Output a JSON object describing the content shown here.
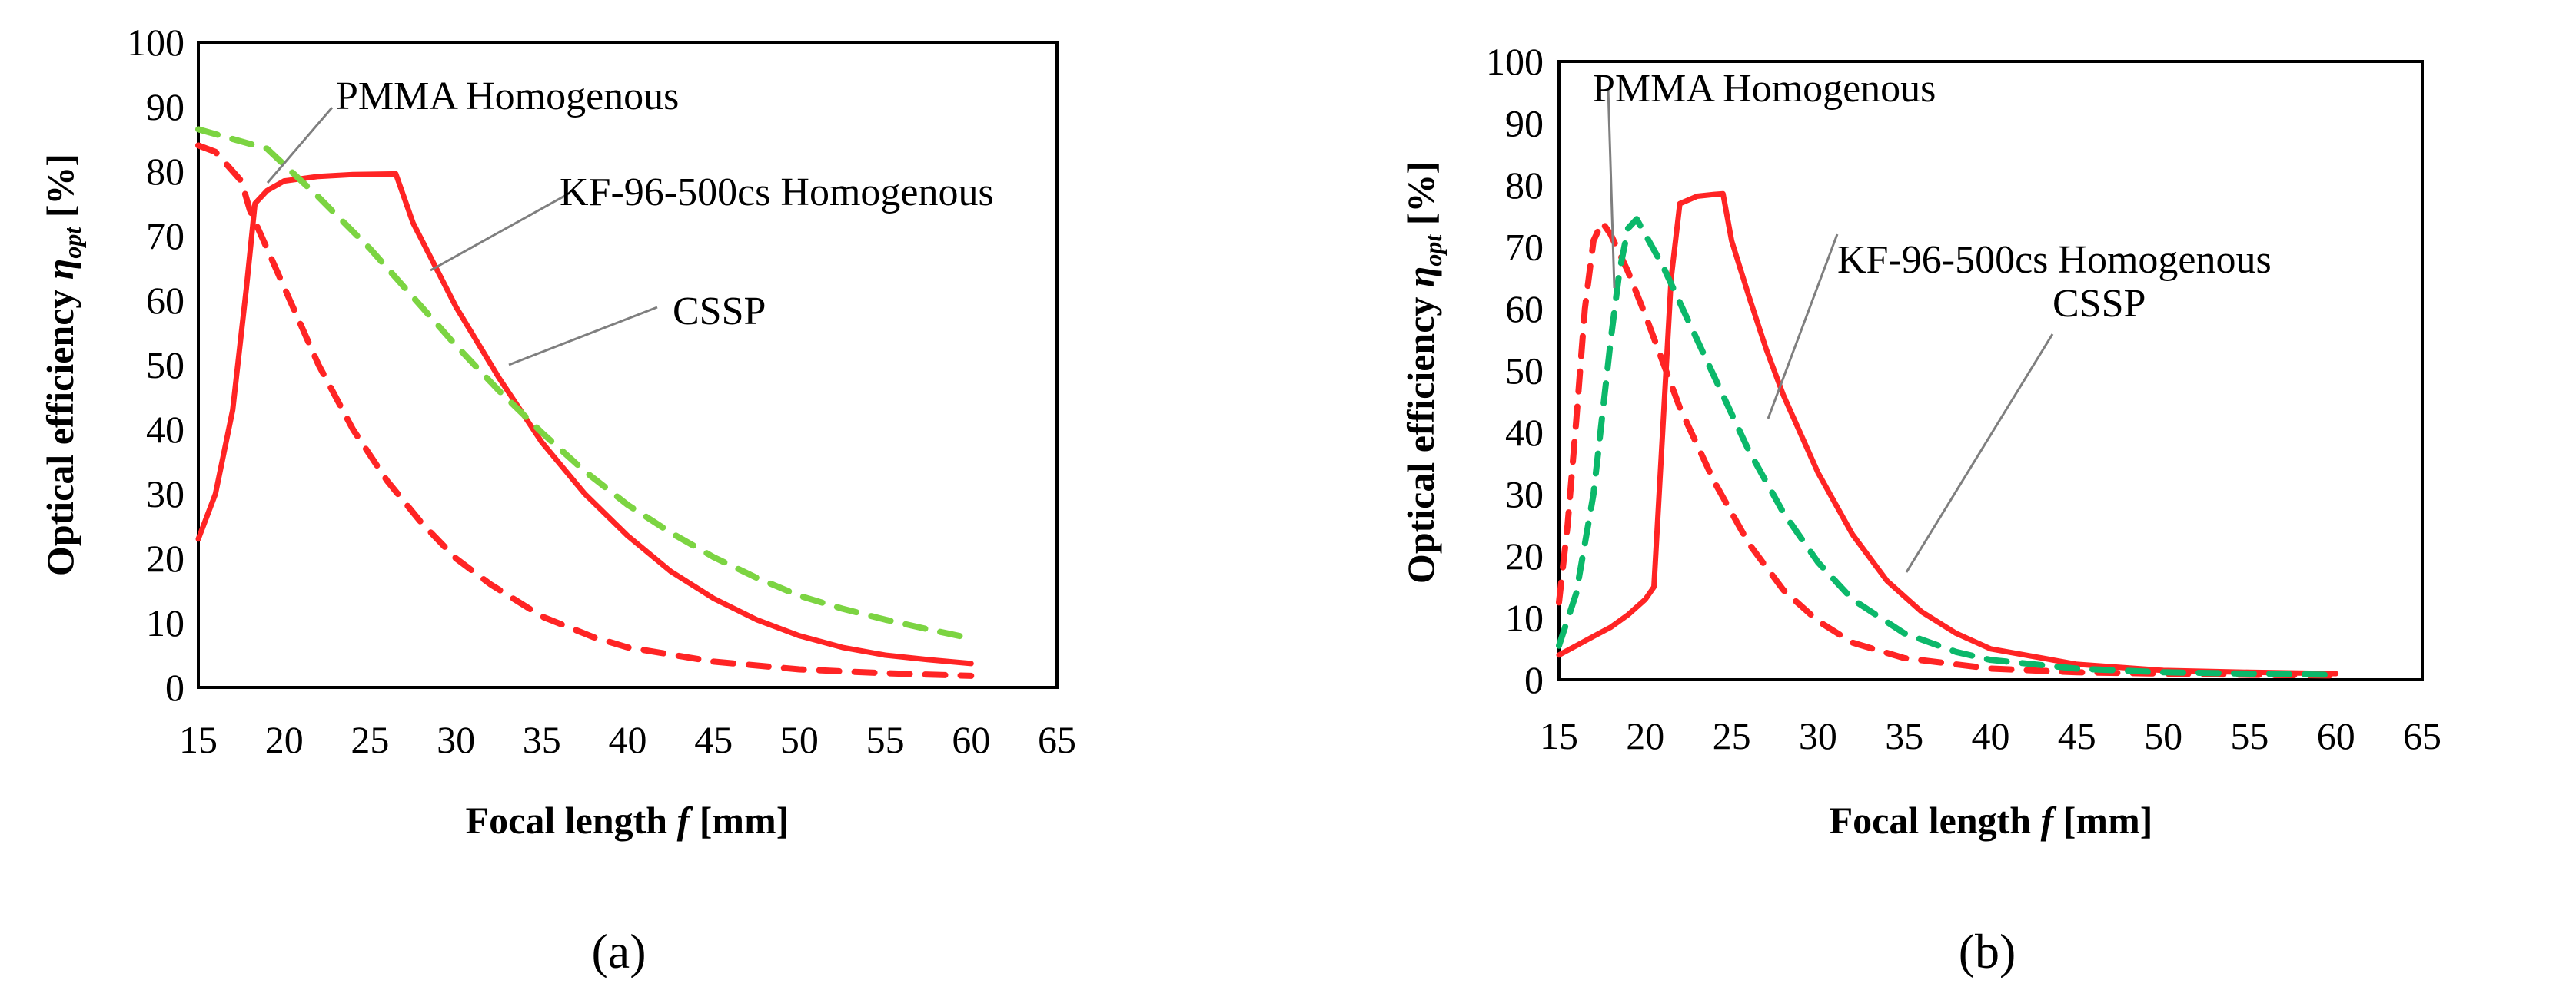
{
  "colors": {
    "red": "#ff2424",
    "green_light": "#7cd442",
    "green_dark": "#0bb86a",
    "frame": "#000000",
    "pointer": "#7f7f7f"
  },
  "chart_data": [
    {
      "type": "line",
      "panel_label": "(a)",
      "xlabel_prefix": "Focal length ",
      "xlabel_var": "f",
      "xlabel_suffix": " [mm]",
      "ylabel_prefix": "Optical efficiency ",
      "ylabel_var": "η",
      "ylabel_sub": "opt",
      "ylabel_suffix": " [%]",
      "xlim": [
        15,
        65
      ],
      "ylim": [
        0,
        100
      ],
      "xticks": [
        "15",
        "20",
        "25",
        "30",
        "35",
        "40",
        "45",
        "50",
        "55",
        "60",
        "65"
      ],
      "yticks": [
        "0",
        "10",
        "20",
        "30",
        "40",
        "50",
        "60",
        "70",
        "80",
        "90",
        "100"
      ],
      "series": [
        {
          "name": "CSSP",
          "style": "solid",
          "color": "#ff2424",
          "x": [
            15,
            16,
            17,
            17.8,
            18.3,
            19,
            20,
            22,
            24,
            26.5,
            27.5,
            30,
            32.5,
            35,
            37.5,
            40,
            42.5,
            45,
            47.5,
            50,
            52.5,
            55,
            57.5,
            60
          ],
          "y": [
            23,
            30,
            43,
            62,
            75,
            77,
            78.5,
            79.2,
            79.5,
            79.6,
            72,
            59,
            48,
            38,
            30,
            23.5,
            18,
            13.8,
            10.5,
            8,
            6.2,
            5,
            4.3,
            3.7
          ]
        },
        {
          "name": "PMMA Homogenous",
          "style": "dashed",
          "color": "#ff2424",
          "x": [
            15,
            16,
            17,
            17.5,
            18,
            19,
            20,
            22,
            24,
            26,
            28,
            30,
            32,
            35,
            38,
            40,
            45,
            50,
            55,
            60
          ],
          "y": [
            84,
            83,
            80,
            78.5,
            74,
            68,
            62,
            50,
            40,
            32,
            25.5,
            20,
            16,
            11,
            7.8,
            6.2,
            4,
            2.8,
            2.2,
            1.8
          ]
        },
        {
          "name": "KF-96-500cs Homogenous",
          "style": "dashed",
          "color": "#7cd442",
          "x": [
            15,
            17,
            19,
            20,
            22,
            25,
            28,
            30,
            32.5,
            35,
            37.5,
            40,
            42.5,
            45,
            47.5,
            50,
            52.5,
            55,
            57.5,
            60
          ],
          "y": [
            86.5,
            85,
            83.5,
            81,
            76,
            68,
            59,
            53,
            46,
            39.5,
            33.5,
            28.3,
            24,
            20.2,
            17,
            14.2,
            12.2,
            10.5,
            9,
            7.6
          ]
        }
      ],
      "annotations": [
        {
          "text": "PMMA Homogenous",
          "series": "PMMA Homogenous"
        },
        {
          "text": "KF-96-500cs Homogenous",
          "series": "KF-96-500cs Homogenous"
        },
        {
          "text": "CSSP",
          "series": "CSSP"
        }
      ]
    },
    {
      "type": "line",
      "panel_label": "(b)",
      "xlabel_prefix": "Focal length ",
      "xlabel_var": "f",
      "xlabel_suffix": " [mm]",
      "ylabel_prefix": "Optical efficiency ",
      "ylabel_var": "η",
      "ylabel_sub": "opt",
      "ylabel_suffix": " [%]",
      "xlim": [
        15,
        65
      ],
      "ylim": [
        0,
        100
      ],
      "xticks": [
        "15",
        "20",
        "25",
        "30",
        "35",
        "40",
        "45",
        "50",
        "55",
        "60",
        "65"
      ],
      "yticks": [
        "0",
        "10",
        "20",
        "30",
        "40",
        "50",
        "60",
        "70",
        "80",
        "90",
        "100"
      ],
      "series": [
        {
          "name": "CSSP",
          "style": "solid",
          "color": "#ff2424",
          "x": [
            15,
            16,
            17,
            18,
            19,
            20,
            20.5,
            21,
            21.5,
            22,
            23,
            24,
            24.5,
            25,
            26,
            27,
            28,
            30,
            32,
            34,
            36,
            38,
            40,
            45,
            50,
            55,
            60
          ],
          "y": [
            4,
            5.5,
            7,
            8.5,
            10.5,
            13,
            15,
            40,
            65,
            77,
            78.2,
            78.5,
            78.6,
            71,
            62,
            53.5,
            46,
            33.5,
            23.5,
            16,
            11,
            7.5,
            5,
            2.5,
            1.5,
            1.2,
            1
          ]
        },
        {
          "name": "PMMA Homogenous",
          "style": "dashed",
          "color": "#ff2424",
          "x": [
            15,
            15.5,
            16,
            16.5,
            17,
            17.5,
            18,
            19,
            20,
            22,
            24,
            26,
            28,
            30,
            32,
            35,
            40,
            45,
            50,
            55,
            60
          ],
          "y": [
            12.5,
            25,
            42,
            60,
            71,
            74,
            72,
            66,
            59,
            44,
            32,
            22,
            14.5,
            9.5,
            6,
            3.5,
            1.8,
            1.2,
            1,
            0.8,
            0.7
          ]
        },
        {
          "name": "KF-96-500cs Homogenous",
          "style": "dashed",
          "color": "#0bb86a",
          "x": [
            15,
            16,
            17,
            18,
            18.5,
            19,
            19.5,
            20,
            21,
            22,
            24,
            26,
            28,
            30,
            32,
            35,
            38,
            40,
            45,
            50,
            55,
            60
          ],
          "y": [
            5.5,
            14,
            30,
            55,
            66,
            73,
            74.5,
            72,
            67,
            61,
            49,
            37,
            27,
            19,
            13,
            7.5,
            4.5,
            3.2,
            1.8,
            1.2,
            1,
            0.8
          ]
        }
      ],
      "annotations": [
        {
          "text": "PMMA Homogenous",
          "series": "PMMA Homogenous"
        },
        {
          "text": "KF-96-500cs Homogenous",
          "series": "KF-96-500cs Homogenous"
        },
        {
          "text": "CSSP",
          "series": "CSSP"
        }
      ]
    }
  ]
}
